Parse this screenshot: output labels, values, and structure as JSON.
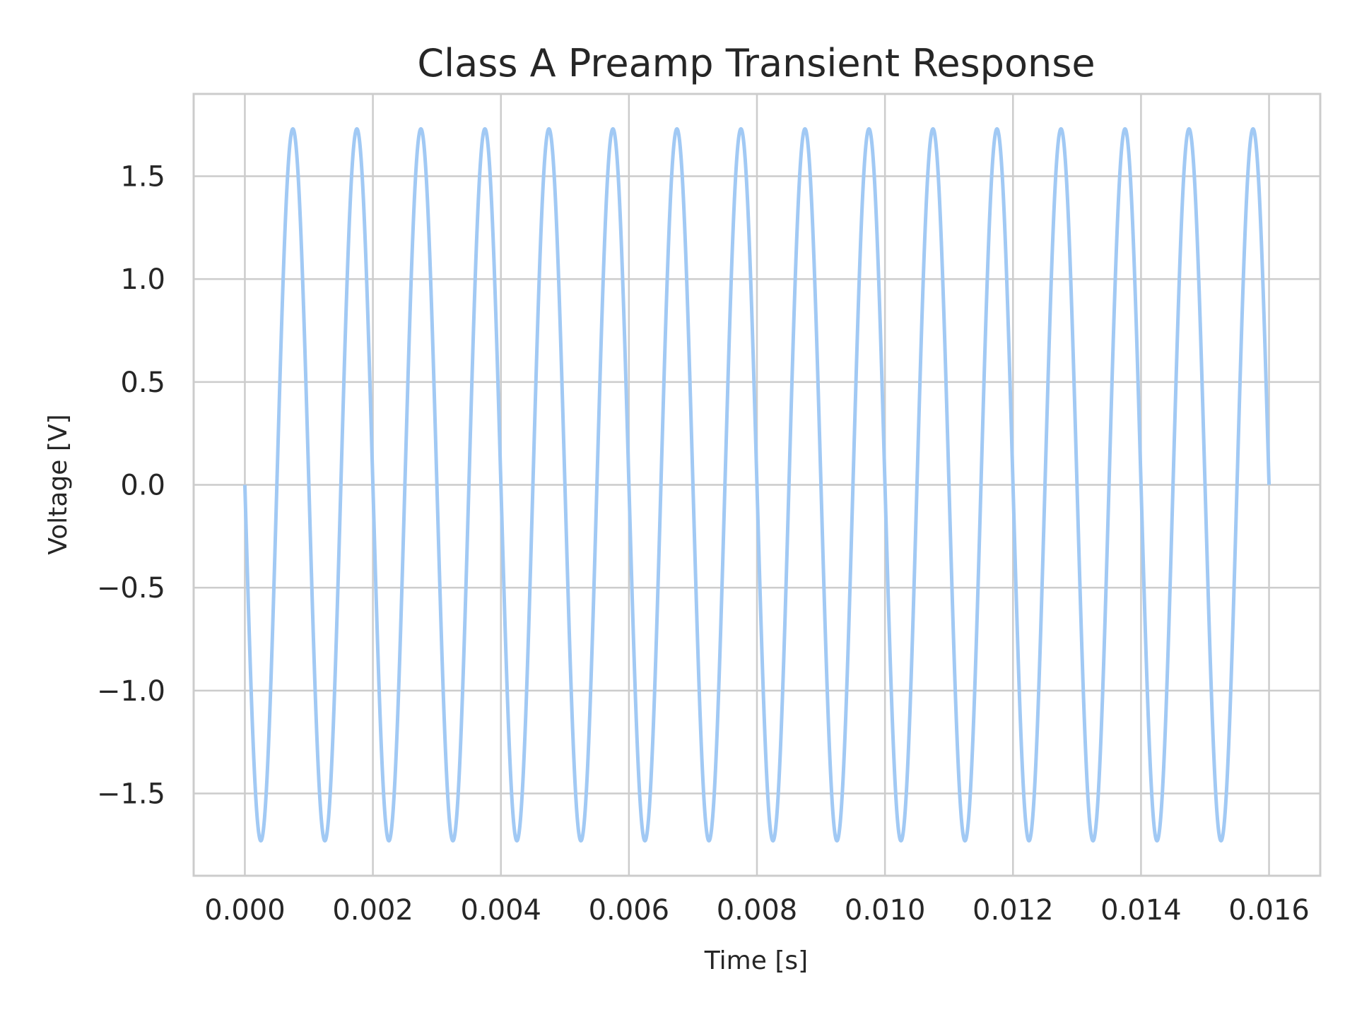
{
  "chart_data": {
    "type": "line",
    "title": "Class A Preamp Transient Response",
    "xlabel": "Time [s]",
    "ylabel": "Voltage [V]",
    "xlim": [
      -0.0008,
      0.0168
    ],
    "ylim": [
      -1.9,
      1.9
    ],
    "grid": true,
    "legend": "none",
    "x_ticks": [
      0.0,
      0.002,
      0.004,
      0.006,
      0.008,
      0.01,
      0.012,
      0.014,
      0.016
    ],
    "x_tick_labels": [
      "0.000",
      "0.002",
      "0.004",
      "0.006",
      "0.008",
      "0.010",
      "0.012",
      "0.014",
      "0.016"
    ],
    "y_ticks": [
      -1.5,
      -1.0,
      -0.5,
      0.0,
      0.5,
      1.0,
      1.5
    ],
    "y_tick_labels": [
      "−1.5",
      "−1.0",
      "−0.5",
      "0.0",
      "0.5",
      "1.0",
      "1.5"
    ],
    "series": [
      {
        "color": "#a1c9f4",
        "function": "sine",
        "amplitude": 1.73,
        "frequency_hz": 1000,
        "phase": "starts at 0 going negative",
        "x_start": 0.0,
        "x_end": 0.016
      }
    ]
  }
}
